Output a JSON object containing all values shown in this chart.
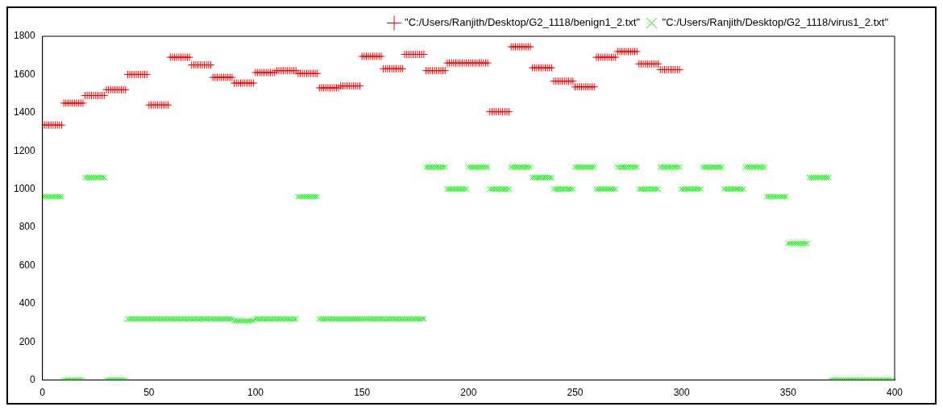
{
  "chart_data": {
    "type": "scatter",
    "xlim": [
      0,
      400
    ],
    "xticks": [
      0,
      50,
      100,
      150,
      200,
      250,
      300,
      350,
      400
    ],
    "ylim": [
      0,
      1800
    ],
    "yticks": [
      0,
      200,
      400,
      600,
      800,
      1000,
      1200,
      1400,
      1600,
      1800
    ],
    "legend": "top right",
    "grid": false,
    "series": [
      {
        "name": "\"C:/Users/Ranjith/Desktop/G2_1118/benign1_2.txt\"",
        "color": "#ff0000",
        "marker": "plus",
        "x": [
          0,
          1,
          2,
          3,
          4,
          5,
          6,
          7,
          8,
          9,
          10,
          11,
          12,
          13,
          14,
          15,
          16,
          17,
          18,
          19,
          20,
          21,
          22,
          23,
          24,
          25,
          26,
          27,
          28,
          29,
          30,
          31,
          32,
          33,
          34,
          35,
          36,
          37,
          38,
          39,
          40,
          41,
          42,
          43,
          44,
          45,
          46,
          47,
          48,
          49,
          50,
          51,
          52,
          53,
          54,
          55,
          56,
          57,
          58,
          59,
          60,
          61,
          62,
          63,
          64,
          65,
          66,
          67,
          68,
          69,
          70,
          71,
          72,
          73,
          74,
          75,
          76,
          77,
          78,
          79,
          80,
          81,
          82,
          83,
          84,
          85,
          86,
          87,
          88,
          89,
          90,
          91,
          92,
          93,
          94,
          95,
          96,
          97,
          98,
          99,
          100,
          101,
          102,
          103,
          104,
          105,
          106,
          107,
          108,
          109,
          110,
          111,
          112,
          113,
          114,
          115,
          116,
          117,
          118,
          119,
          120,
          121,
          122,
          123,
          124,
          125,
          126,
          127,
          128,
          129,
          130,
          131,
          132,
          133,
          134,
          135,
          136,
          137,
          138,
          139,
          140,
          141,
          142,
          143,
          144,
          145,
          146,
          147,
          148,
          149,
          150,
          151,
          152,
          153,
          154,
          155,
          156,
          157,
          158,
          159,
          160,
          161,
          162,
          163,
          164,
          165,
          166,
          167,
          168,
          169,
          170,
          171,
          172,
          173,
          174,
          175,
          176,
          177,
          178,
          179,
          180,
          181,
          182,
          183,
          184,
          185,
          186,
          187,
          188,
          189,
          190,
          191,
          192,
          193,
          194,
          195,
          196,
          197,
          198,
          199,
          200,
          201,
          202,
          203,
          204,
          205,
          206,
          207,
          208,
          209,
          210,
          211,
          212,
          213,
          214,
          215,
          216,
          217,
          218,
          219,
          220,
          221,
          222,
          223,
          224,
          225,
          226,
          227,
          228,
          229,
          230,
          231,
          232,
          233,
          234,
          235,
          236,
          237,
          238,
          239,
          240,
          241,
          242,
          243,
          244,
          245,
          246,
          247,
          248,
          249,
          250,
          251,
          252,
          253,
          254,
          255,
          256,
          257,
          258,
          259,
          260,
          261,
          262,
          263,
          264,
          265,
          266,
          267,
          268,
          269,
          270,
          271,
          272,
          273,
          274,
          275,
          276,
          277,
          278,
          279,
          280,
          281,
          282,
          283,
          284,
          285,
          286,
          287,
          288,
          289,
          290,
          291,
          292,
          293,
          294,
          295,
          296,
          297,
          298,
          299
        ],
        "values": [
          1335,
          1335,
          1335,
          1335,
          1335,
          1335,
          1335,
          1335,
          1335,
          1335,
          1450,
          1450,
          1450,
          1450,
          1450,
          1450,
          1450,
          1450,
          1450,
          1450,
          1490,
          1490,
          1490,
          1490,
          1490,
          1490,
          1490,
          1490,
          1490,
          1490,
          1520,
          1520,
          1520,
          1520,
          1520,
          1520,
          1520,
          1520,
          1520,
          1520,
          1600,
          1600,
          1600,
          1600,
          1600,
          1600,
          1600,
          1600,
          1600,
          1600,
          1440,
          1440,
          1440,
          1440,
          1440,
          1440,
          1440,
          1440,
          1440,
          1440,
          1690,
          1690,
          1690,
          1690,
          1690,
          1690,
          1690,
          1690,
          1690,
          1690,
          1650,
          1650,
          1650,
          1650,
          1650,
          1650,
          1650,
          1650,
          1650,
          1650,
          1585,
          1585,
          1585,
          1585,
          1585,
          1585,
          1585,
          1585,
          1585,
          1585,
          1555,
          1555,
          1555,
          1555,
          1555,
          1555,
          1555,
          1555,
          1555,
          1555,
          1610,
          1610,
          1610,
          1610,
          1610,
          1610,
          1610,
          1610,
          1610,
          1610,
          1620,
          1620,
          1620,
          1620,
          1620,
          1620,
          1620,
          1620,
          1620,
          1620,
          1605,
          1605,
          1605,
          1605,
          1605,
          1605,
          1605,
          1605,
          1605,
          1605,
          1530,
          1530,
          1530,
          1530,
          1530,
          1530,
          1530,
          1530,
          1530,
          1530,
          1540,
          1540,
          1540,
          1540,
          1540,
          1540,
          1540,
          1540,
          1540,
          1540,
          1695,
          1695,
          1695,
          1695,
          1695,
          1695,
          1695,
          1695,
          1695,
          1695,
          1630,
          1630,
          1630,
          1630,
          1630,
          1630,
          1630,
          1630,
          1630,
          1630,
          1705,
          1705,
          1705,
          1705,
          1705,
          1705,
          1705,
          1705,
          1705,
          1705,
          1620,
          1620,
          1620,
          1620,
          1620,
          1620,
          1620,
          1620,
          1620,
          1620,
          1660,
          1660,
          1660,
          1660,
          1660,
          1660,
          1660,
          1660,
          1660,
          1660,
          1660,
          1660,
          1660,
          1660,
          1660,
          1660,
          1660,
          1660,
          1660,
          1660,
          1405,
          1405,
          1405,
          1405,
          1405,
          1405,
          1405,
          1405,
          1405,
          1405,
          1745,
          1745,
          1745,
          1745,
          1745,
          1745,
          1745,
          1745,
          1745,
          1745,
          1635,
          1635,
          1635,
          1635,
          1635,
          1635,
          1635,
          1635,
          1635,
          1635,
          1565,
          1565,
          1565,
          1565,
          1565,
          1565,
          1565,
          1565,
          1565,
          1565,
          1535,
          1535,
          1535,
          1535,
          1535,
          1535,
          1535,
          1535,
          1535,
          1535,
          1690,
          1690,
          1690,
          1690,
          1690,
          1690,
          1690,
          1690,
          1690,
          1690,
          1720,
          1720,
          1720,
          1720,
          1720,
          1720,
          1720,
          1720,
          1720,
          1720,
          1655,
          1655,
          1655,
          1655,
          1655,
          1655,
          1655,
          1655,
          1655,
          1655,
          1625,
          1625,
          1625,
          1625,
          1625,
          1625,
          1625,
          1625,
          1625,
          1625
        ]
      },
      {
        "name": "\"C:/Users/Ranjith/Desktop/G2_1118/virus1_2.txt\"",
        "color": "#00ff00",
        "marker": "cross",
        "x": [
          0,
          1,
          2,
          3,
          4,
          5,
          6,
          7,
          8,
          9,
          10,
          11,
          12,
          13,
          14,
          15,
          16,
          17,
          18,
          19,
          20,
          21,
          22,
          23,
          24,
          25,
          26,
          27,
          28,
          29,
          30,
          31,
          32,
          33,
          34,
          35,
          36,
          37,
          38,
          39,
          40,
          41,
          42,
          43,
          44,
          45,
          46,
          47,
          48,
          49,
          50,
          51,
          52,
          53,
          54,
          55,
          56,
          57,
          58,
          59,
          60,
          61,
          62,
          63,
          64,
          65,
          66,
          67,
          68,
          69,
          70,
          71,
          72,
          73,
          74,
          75,
          76,
          77,
          78,
          79,
          80,
          81,
          82,
          83,
          84,
          85,
          86,
          87,
          88,
          89,
          90,
          91,
          92,
          93,
          94,
          95,
          96,
          97,
          98,
          99,
          100,
          101,
          102,
          103,
          104,
          105,
          106,
          107,
          108,
          109,
          110,
          111,
          112,
          113,
          114,
          115,
          116,
          117,
          118,
          119,
          120,
          121,
          122,
          123,
          124,
          125,
          126,
          127,
          128,
          129,
          130,
          131,
          132,
          133,
          134,
          135,
          136,
          137,
          138,
          139,
          140,
          141,
          142,
          143,
          144,
          145,
          146,
          147,
          148,
          149,
          150,
          151,
          152,
          153,
          154,
          155,
          156,
          157,
          158,
          159,
          160,
          161,
          162,
          163,
          164,
          165,
          166,
          167,
          168,
          169,
          170,
          171,
          172,
          173,
          174,
          175,
          176,
          177,
          178,
          179,
          180,
          181,
          182,
          183,
          184,
          185,
          186,
          187,
          188,
          189,
          190,
          191,
          192,
          193,
          194,
          195,
          196,
          197,
          198,
          199,
          200,
          201,
          202,
          203,
          204,
          205,
          206,
          207,
          208,
          209,
          210,
          211,
          212,
          213,
          214,
          215,
          216,
          217,
          218,
          219,
          220,
          221,
          222,
          223,
          224,
          225,
          226,
          227,
          228,
          229,
          230,
          231,
          232,
          233,
          234,
          235,
          236,
          237,
          238,
          239,
          240,
          241,
          242,
          243,
          244,
          245,
          246,
          247,
          248,
          249,
          250,
          251,
          252,
          253,
          254,
          255,
          256,
          257,
          258,
          259,
          260,
          261,
          262,
          263,
          264,
          265,
          266,
          267,
          268,
          269,
          270,
          271,
          272,
          273,
          274,
          275,
          276,
          277,
          278,
          279,
          280,
          281,
          282,
          283,
          284,
          285,
          286,
          287,
          288,
          289,
          290,
          291,
          292,
          293,
          294,
          295,
          296,
          297,
          298,
          299,
          300,
          301,
          302,
          303,
          304,
          305,
          306,
          307,
          308,
          309,
          310,
          311,
          312,
          313,
          314,
          315,
          316,
          317,
          318,
          319,
          320,
          321,
          322,
          323,
          324,
          325,
          326,
          327,
          328,
          329,
          330,
          331,
          332,
          333,
          334,
          335,
          336,
          337,
          338,
          339,
          340,
          341,
          342,
          343,
          344,
          345,
          346,
          347,
          348,
          349,
          350,
          351,
          352,
          353,
          354,
          355,
          356,
          357,
          358,
          359,
          360,
          361,
          362,
          363,
          364,
          365,
          366,
          367,
          368,
          369,
          370,
          371,
          372,
          373,
          374,
          375,
          376,
          377,
          378,
          379,
          380,
          381,
          382,
          383,
          384,
          385,
          386,
          387,
          388,
          389,
          390,
          391,
          392,
          393,
          394,
          395,
          396,
          397,
          398,
          399
        ],
        "values": [
          960,
          960,
          960,
          960,
          960,
          960,
          960,
          960,
          960,
          960,
          0,
          0,
          0,
          0,
          0,
          0,
          0,
          0,
          0,
          0,
          1060,
          1060,
          1060,
          1060,
          1060,
          1060,
          1060,
          1060,
          1060,
          1060,
          0,
          0,
          0,
          0,
          0,
          0,
          0,
          0,
          0,
          0,
          320,
          320,
          320,
          320,
          320,
          320,
          320,
          320,
          320,
          320,
          320,
          320,
          320,
          320,
          320,
          320,
          320,
          320,
          320,
          320,
          320,
          320,
          320,
          320,
          320,
          320,
          320,
          320,
          320,
          320,
          320,
          320,
          320,
          320,
          320,
          320,
          320,
          320,
          320,
          320,
          320,
          320,
          320,
          320,
          320,
          320,
          320,
          320,
          320,
          320,
          310,
          310,
          310,
          310,
          310,
          310,
          310,
          310,
          310,
          310,
          320,
          320,
          320,
          320,
          320,
          320,
          320,
          320,
          320,
          320,
          320,
          320,
          320,
          320,
          320,
          320,
          320,
          320,
          320,
          320,
          960,
          960,
          960,
          960,
          960,
          960,
          960,
          960,
          960,
          960,
          320,
          320,
          320,
          320,
          320,
          320,
          320,
          320,
          320,
          320,
          320,
          320,
          320,
          320,
          320,
          320,
          320,
          320,
          320,
          320,
          320,
          320,
          320,
          320,
          320,
          320,
          320,
          320,
          320,
          320,
          320,
          320,
          320,
          320,
          320,
          320,
          320,
          320,
          320,
          320,
          320,
          320,
          320,
          320,
          320,
          320,
          320,
          320,
          320,
          320,
          1115,
          1115,
          1115,
          1115,
          1115,
          1115,
          1115,
          1115,
          1115,
          1115,
          1000,
          1000,
          1000,
          1000,
          1000,
          1000,
          1000,
          1000,
          1000,
          1000,
          1115,
          1115,
          1115,
          1115,
          1115,
          1115,
          1115,
          1115,
          1115,
          1115,
          1000,
          1000,
          1000,
          1000,
          1000,
          1000,
          1000,
          1000,
          1000,
          1000,
          1115,
          1115,
          1115,
          1115,
          1115,
          1115,
          1115,
          1115,
          1115,
          1115,
          1060,
          1060,
          1060,
          1060,
          1060,
          1060,
          1060,
          1060,
          1060,
          1060,
          1000,
          1000,
          1000,
          1000,
          1000,
          1000,
          1000,
          1000,
          1000,
          1000,
          1115,
          1115,
          1115,
          1115,
          1115,
          1115,
          1115,
          1115,
          1115,
          1115,
          1000,
          1000,
          1000,
          1000,
          1000,
          1000,
          1000,
          1000,
          1000,
          1000,
          1115,
          1115,
          1115,
          1115,
          1115,
          1115,
          1115,
          1115,
          1115,
          1115,
          1000,
          1000,
          1000,
          1000,
          1000,
          1000,
          1000,
          1000,
          1000,
          1000,
          1115,
          1115,
          1115,
          1115,
          1115,
          1115,
          1115,
          1115,
          1115,
          1115,
          1000,
          1000,
          1000,
          1000,
          1000,
          1000,
          1000,
          1000,
          1000,
          1000,
          1115,
          1115,
          1115,
          1115,
          1115,
          1115,
          1115,
          1115,
          1115,
          1115,
          1000,
          1000,
          1000,
          1000,
          1000,
          1000,
          1000,
          1000,
          1000,
          1000,
          1115,
          1115,
          1115,
          1115,
          1115,
          1115,
          1115,
          1115,
          1115,
          1115,
          960,
          960,
          960,
          960,
          960,
          960,
          960,
          960,
          960,
          960,
          715,
          715,
          715,
          715,
          715,
          715,
          715,
          715,
          715,
          715,
          1060,
          1060,
          1060,
          1060,
          1060,
          1060,
          1060,
          1060,
          1060,
          1060,
          0,
          0,
          0,
          0,
          0,
          0,
          0,
          0,
          0,
          0,
          0,
          0,
          0,
          0,
          0,
          0,
          0,
          0,
          0,
          0,
          0,
          0,
          0,
          0,
          0,
          0,
          0,
          0,
          0,
          0
        ]
      }
    ]
  }
}
